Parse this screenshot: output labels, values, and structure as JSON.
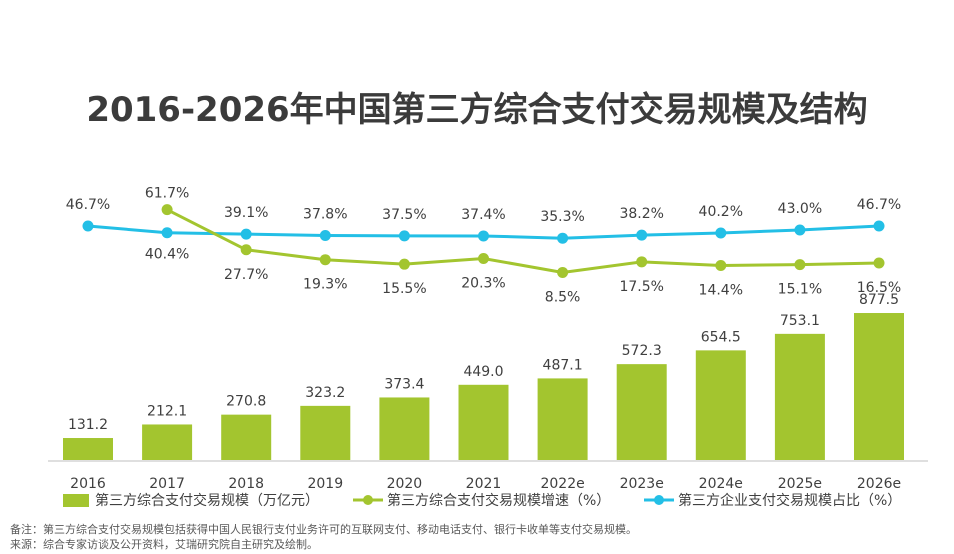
{
  "title": "2016-2026年中国第三方综合支付交易规模及结构",
  "chart_data": {
    "type": "bar",
    "categories": [
      "2016",
      "2017",
      "2018",
      "2019",
      "2020",
      "2021",
      "2022e",
      "2023e",
      "2024e",
      "2025e",
      "2026e"
    ],
    "series": [
      {
        "name": "第三方综合支付交易规模（万亿元）",
        "type": "bar",
        "color": "#a3c52f",
        "values": [
          131.2,
          212.1,
          270.8,
          323.2,
          373.4,
          449.0,
          487.1,
          572.3,
          654.5,
          753.1,
          877.5
        ],
        "labels": [
          "131.2",
          "212.1",
          "270.8",
          "323.2",
          "373.4",
          "449.0",
          "487.1",
          "572.3",
          "654.5",
          "753.1",
          "877.5"
        ]
      },
      {
        "name": "第三方综合支付交易规模增速（%）",
        "type": "line",
        "color": "#a3c52f",
        "values": [
          null,
          61.7,
          27.7,
          19.3,
          15.5,
          20.3,
          8.5,
          17.5,
          14.4,
          15.1,
          16.5
        ],
        "labels": [
          "",
          "61.7%",
          "27.7%",
          "19.3%",
          "15.5%",
          "20.3%",
          "8.5%",
          "17.5%",
          "14.4%",
          "15.1%",
          "16.5%"
        ]
      },
      {
        "name": "第三方企业支付交易规模占比（%）",
        "type": "line",
        "color": "#23bfe6",
        "values": [
          46.7,
          40.4,
          39.1,
          37.8,
          37.5,
          37.4,
          35.3,
          38.2,
          40.2,
          43.0,
          46.7
        ],
        "labels": [
          "46.7%",
          "40.4%",
          "39.1%",
          "37.8%",
          "37.5%",
          "37.4%",
          "35.3%",
          "38.2%",
          "40.2%",
          "43.0%",
          "46.7%"
        ]
      }
    ],
    "grid": false,
    "legend_position": "bottom"
  },
  "footnotes": {
    "note": "备注：第三方综合支付交易规模包括获得中国人民银行支付业务许可的互联网支付、移动电话支付、银行卡收单等支付交易规模。",
    "source": "来源：综合专家访谈及公开资料，艾瑞研究院自主研究及绘制。"
  }
}
